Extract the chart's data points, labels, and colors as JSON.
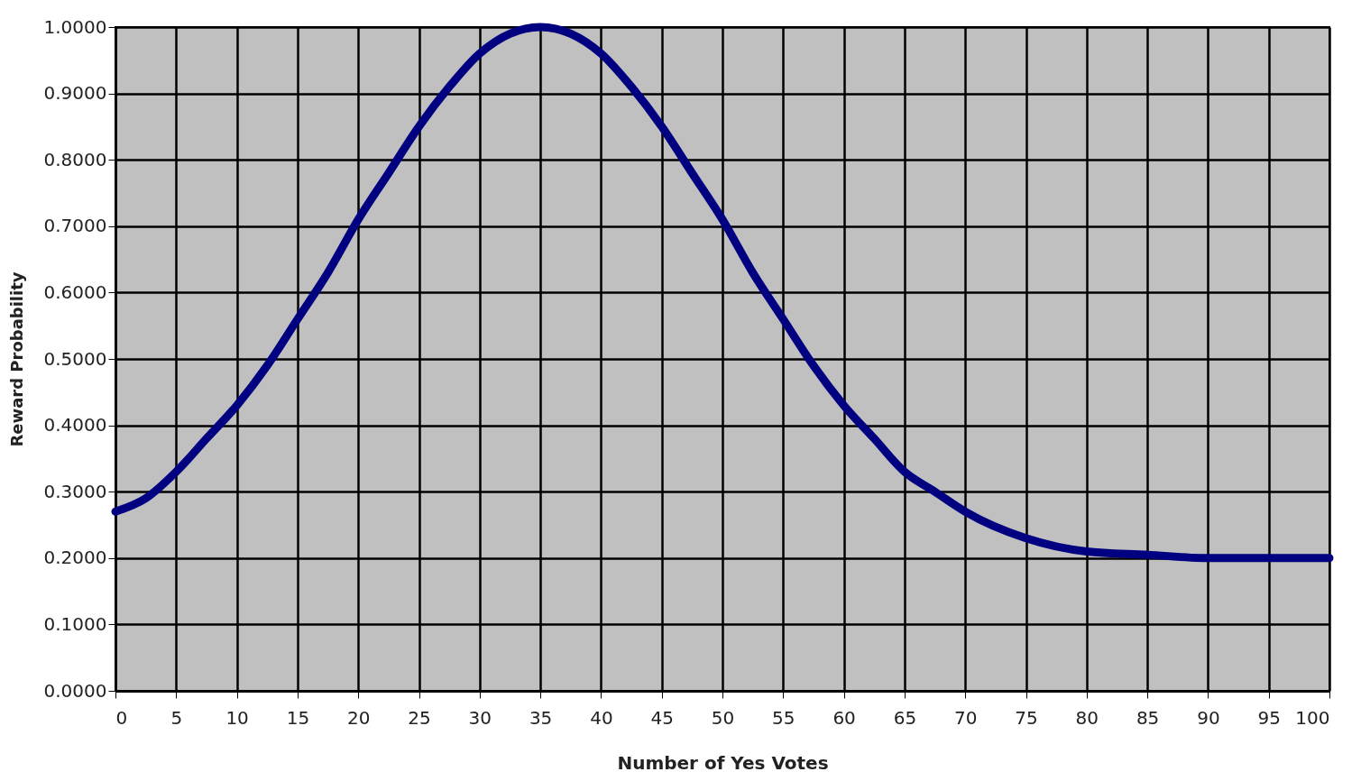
{
  "chart_data": {
    "type": "line",
    "xlabel": "Number of Yes Votes",
    "ylabel": "Reward Probability",
    "x": [
      0,
      2.5,
      5,
      7.5,
      10,
      12.5,
      15,
      17.5,
      20,
      22.5,
      25,
      27.5,
      30,
      32.5,
      35,
      37.5,
      40,
      42.5,
      45,
      47.5,
      50,
      52.5,
      55,
      57.5,
      60,
      62.5,
      65,
      67.5,
      70,
      75,
      80,
      85,
      90,
      95,
      100
    ],
    "series": [
      {
        "color": "#000080",
        "values": [
          0.27,
          0.29,
          0.33,
          0.38,
          0.43,
          0.49,
          0.56,
          0.63,
          0.71,
          0.78,
          0.85,
          0.91,
          0.96,
          0.99,
          1.0,
          0.99,
          0.96,
          0.91,
          0.85,
          0.78,
          0.71,
          0.63,
          0.56,
          0.49,
          0.43,
          0.38,
          0.33,
          0.3,
          0.27,
          0.23,
          0.21,
          0.205,
          0.2,
          0.2,
          0.2
        ]
      }
    ],
    "xlim": [
      0,
      100
    ],
    "xticks": [
      0,
      5,
      10,
      15,
      20,
      25,
      30,
      35,
      40,
      45,
      50,
      55,
      60,
      65,
      70,
      75,
      80,
      85,
      90,
      95,
      100
    ],
    "ylim": [
      0,
      1
    ],
    "yticks": [
      {
        "value": 0,
        "label": "0.0000"
      },
      {
        "value": 0.1,
        "label": "0.1000"
      },
      {
        "value": 0.2,
        "label": "0.2000"
      },
      {
        "value": 0.3,
        "label": "0.3000"
      },
      {
        "value": 0.4,
        "label": "0.4000"
      },
      {
        "value": 0.5,
        "label": "0.5000"
      },
      {
        "value": 0.6,
        "label": "0.6000"
      },
      {
        "value": 0.7,
        "label": "0.7000"
      },
      {
        "value": 0.8,
        "label": "0.8000"
      },
      {
        "value": 0.9,
        "label": "0.9000"
      },
      {
        "value": 1.0,
        "label": "1.0000"
      }
    ],
    "grid": true,
    "line_style": "solid"
  }
}
